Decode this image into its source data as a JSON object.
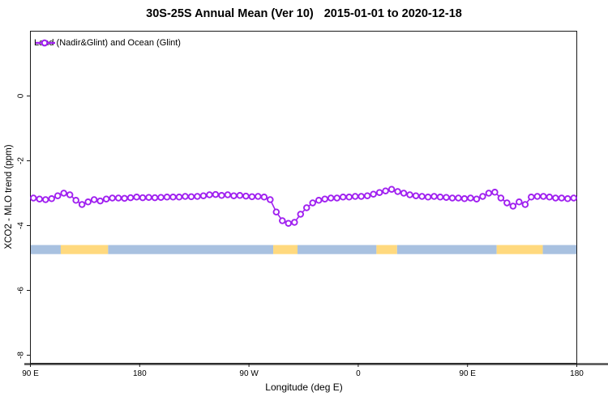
{
  "header": {
    "title_main": "30S-25S Annual Mean (Ver 10)",
    "title_dates": "2015-01-01 to 2020-12-18"
  },
  "legend": {
    "label": "Land (Nadir&Glint) and Ocean (Glint)",
    "marker": "open-circle-on-line",
    "color": "#A020F0",
    "position": "top-left"
  },
  "axes": {
    "xlabel": "Longitude (deg E)",
    "ylabel": "XCO2 - MLO trend (ppm)"
  },
  "colors": {
    "line": "#A020F0",
    "marker_fill": "#ffffff",
    "land_band": "#FFD97E",
    "ocean_band": "#A8C1E0",
    "baseline": "#4d4d4d",
    "box": "#1a1a1a",
    "text": "#000000"
  },
  "chart_data": {
    "type": "line",
    "title": "30S-25S Annual Mean (Ver 10)   2015-01-01 to 2020-12-18",
    "xlabel": "Longitude (deg E)",
    "ylabel": "XCO2 - MLO trend (ppm)",
    "xlim": [
      90,
      540
    ],
    "ylim": [
      -8.25,
      2.0
    ],
    "grid": false,
    "legend_position": "top-left",
    "x_ticks": [
      {
        "pos": 90,
        "label": "90 E"
      },
      {
        "pos": 180,
        "label": "180"
      },
      {
        "pos": 270,
        "label": "90 W"
      },
      {
        "pos": 360,
        "label": "0"
      },
      {
        "pos": 450,
        "label": "90 E"
      },
      {
        "pos": 540,
        "label": "180"
      }
    ],
    "y_ticks": [
      {
        "pos": 0,
        "label": "0"
      },
      {
        "pos": -2,
        "label": "-2"
      },
      {
        "pos": -4,
        "label": "-4"
      },
      {
        "pos": -6,
        "label": "-6"
      },
      {
        "pos": -8,
        "label": "-8"
      }
    ],
    "series": [
      {
        "name": "Land (Nadir&Glint) and Ocean (Glint)",
        "color": "#A020F0",
        "marker": "open-circle",
        "x": [
          92.5,
          97.5,
          102.5,
          107.5,
          112.5,
          117.5,
          122.5,
          127.5,
          132.5,
          137.5,
          142.5,
          147.5,
          152.5,
          157.5,
          162.5,
          167.5,
          172.5,
          177.5,
          182.5,
          187.5,
          192.5,
          197.5,
          202.5,
          207.5,
          212.5,
          217.5,
          222.5,
          227.5,
          232.5,
          237.5,
          242.5,
          247.5,
          252.5,
          257.5,
          262.5,
          267.5,
          272.5,
          277.5,
          282.5,
          287.5,
          292.5,
          297.5,
          302.5,
          307.5,
          312.5,
          317.5,
          322.5,
          327.5,
          332.5,
          337.5,
          342.5,
          347.5,
          352.5,
          357.5,
          362.5,
          367.5,
          372.5,
          377.5,
          382.5,
          387.5,
          392.5,
          397.5,
          402.5,
          407.5,
          412.5,
          417.5,
          422.5,
          427.5,
          432.5,
          437.5,
          442.5,
          447.5,
          452.5,
          457.5,
          462.5,
          467.5,
          472.5,
          477.5,
          482.5,
          487.5,
          492.5,
          497.5,
          502.5,
          507.5,
          512.5,
          517.5,
          522.5,
          527.5,
          532.5,
          537.5
        ],
        "values": [
          -3.15,
          -3.18,
          -3.2,
          -3.17,
          -3.08,
          -3.0,
          -3.05,
          -3.22,
          -3.35,
          -3.27,
          -3.2,
          -3.24,
          -3.18,
          -3.15,
          -3.15,
          -3.16,
          -3.14,
          -3.12,
          -3.14,
          -3.13,
          -3.14,
          -3.13,
          -3.12,
          -3.12,
          -3.12,
          -3.1,
          -3.11,
          -3.1,
          -3.08,
          -3.05,
          -3.04,
          -3.07,
          -3.05,
          -3.08,
          -3.07,
          -3.09,
          -3.11,
          -3.1,
          -3.12,
          -3.2,
          -3.58,
          -3.85,
          -3.93,
          -3.9,
          -3.65,
          -3.45,
          -3.3,
          -3.22,
          -3.18,
          -3.15,
          -3.15,
          -3.12,
          -3.12,
          -3.1,
          -3.1,
          -3.08,
          -3.03,
          -2.98,
          -2.93,
          -2.88,
          -2.95,
          -3.0,
          -3.05,
          -3.08,
          -3.1,
          -3.12,
          -3.1,
          -3.12,
          -3.13,
          -3.15,
          -3.15,
          -3.17,
          -3.15,
          -3.18,
          -3.1,
          -3.0,
          -2.97,
          -3.15,
          -3.3,
          -3.4,
          -3.27,
          -3.35,
          -3.12,
          -3.1,
          -3.1,
          -3.12,
          -3.15,
          -3.15,
          -3.17,
          -3.15
        ]
      }
    ],
    "surface_type_band": {
      "y_top": -4.6,
      "y_bottom": -4.88,
      "colors": {
        "land": "#FFD97E",
        "ocean": "#A8C1E0"
      },
      "segments": [
        {
          "from": 90,
          "to": 115,
          "type": "ocean"
        },
        {
          "from": 115,
          "to": 154,
          "type": "land"
        },
        {
          "from": 154,
          "to": 290,
          "type": "ocean"
        },
        {
          "from": 290,
          "to": 310,
          "type": "land"
        },
        {
          "from": 310,
          "to": 375,
          "type": "ocean"
        },
        {
          "from": 375,
          "to": 392,
          "type": "land"
        },
        {
          "from": 392,
          "to": 474,
          "type": "ocean"
        },
        {
          "from": 474,
          "to": 512,
          "type": "land"
        },
        {
          "from": 512,
          "to": 540,
          "type": "ocean"
        }
      ]
    }
  }
}
